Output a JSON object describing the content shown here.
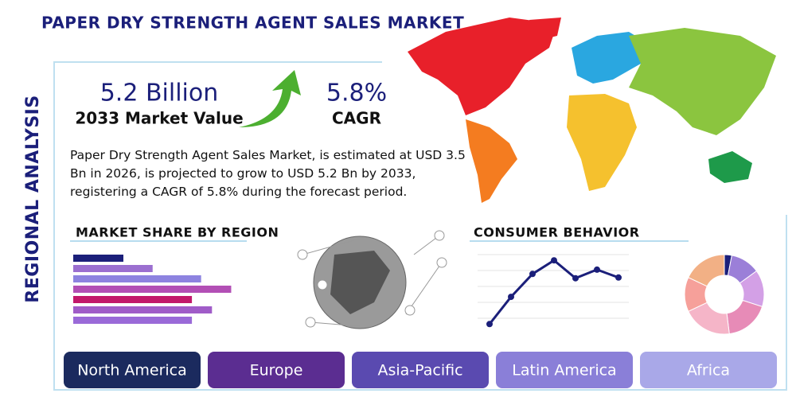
{
  "header": {
    "title": "PAPER DRY STRENGTH AGENT SALES MARKET",
    "side_label": "REGIONAL ANALYSIS"
  },
  "stats": {
    "market_value": "5.2 Billion",
    "market_value_label": "2033 Market Value",
    "cagr": "5.8%",
    "cagr_label": "CAGR"
  },
  "description": "Paper Dry Strength Agent Sales Market, is estimated at USD 3.5 Bn in 2026, is projected to grow to USD 5.2 Bn by 2033, registering a CAGR of 5.8% during the forecast period.",
  "market_share": {
    "title": "MARKET SHARE BY REGION",
    "values": [
      60,
      95,
      153,
      189,
      142,
      166,
      142
    ],
    "colors": [
      "#1b1f7a",
      "#9b6fd0",
      "#8d83e0",
      "#b24fb5",
      "#c2186b",
      "#a05cc8",
      "#9a6ad8"
    ],
    "xlim": [
      0,
      200
    ]
  },
  "consumer_behavior": {
    "title": "CONSUMER BEHAVIOR",
    "values": [
      3,
      41,
      73,
      92,
      67,
      79,
      68
    ],
    "color": "#1b1f7a",
    "ylim": [
      0,
      100
    ]
  },
  "donut": {
    "values": [
      3,
      12,
      15,
      18,
      20,
      14,
      18
    ],
    "colors": [
      "#1b1f7a",
      "#9b7fd8",
      "#d3a0e6",
      "#e78bb7",
      "#f5b5c8",
      "#f6a09a",
      "#f2b085"
    ]
  },
  "regions": [
    "North America",
    "Europe",
    "Asia-Pacific",
    "Latin America",
    "Africa"
  ],
  "region_colors": [
    "#1b2a5e",
    "#5b2d91",
    "#5a4ab0",
    "#8a7fd8",
    "#a9a8e8"
  ]
}
